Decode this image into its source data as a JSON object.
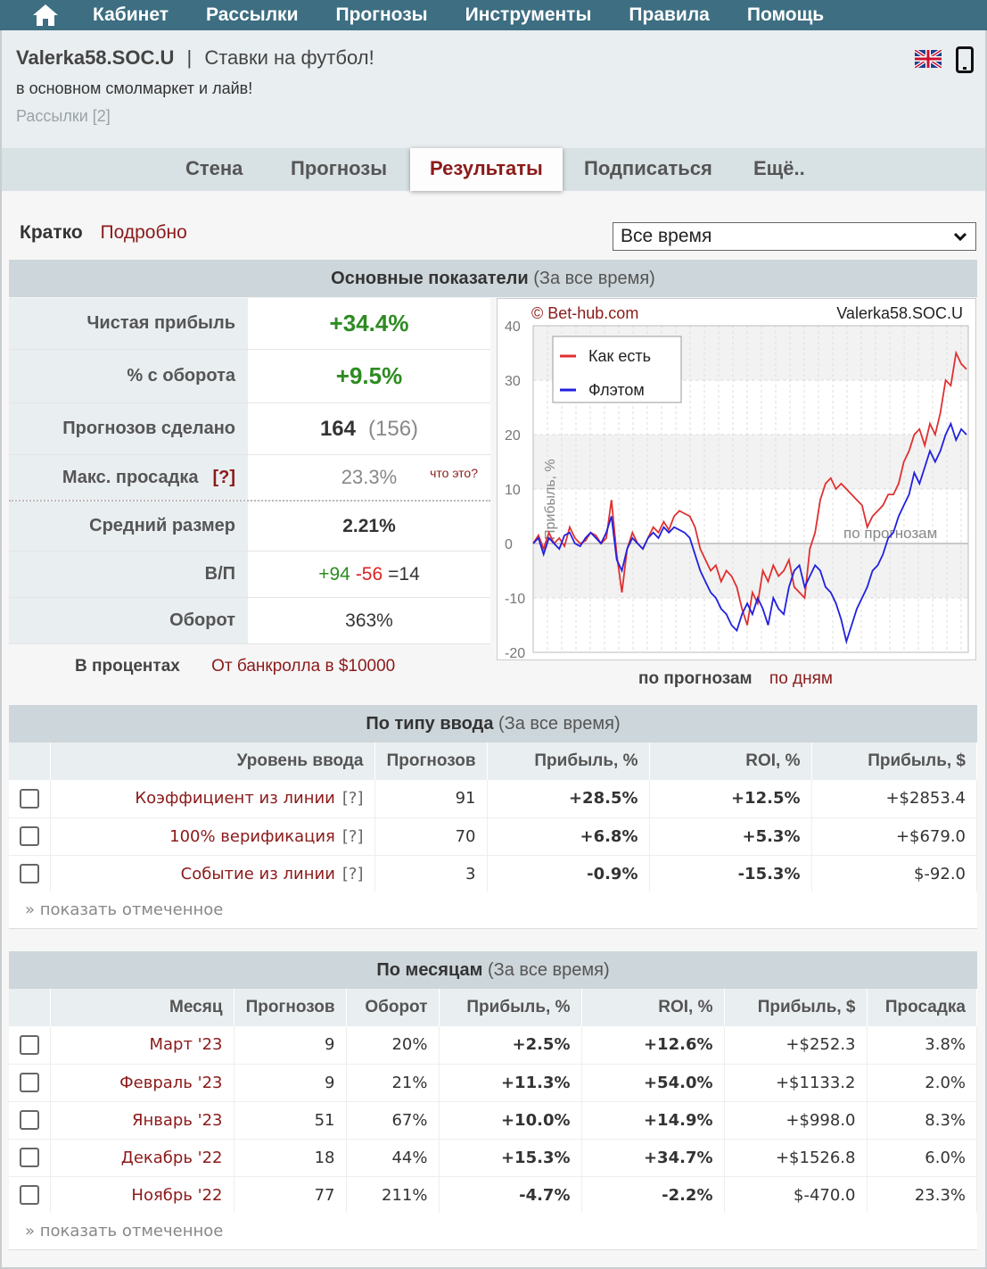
{
  "nav": {
    "items": [
      "Кабинет",
      "Рассылки",
      "Прогнозы",
      "Инструменты",
      "Правила",
      "Помощь"
    ]
  },
  "header": {
    "name": "Valerka58.SOC.U",
    "separator": "|",
    "title": "Ставки на футбол!",
    "subtitle": "в основном смолмаркет и лайв!",
    "mailings": "Рассылки [2]"
  },
  "tabs": [
    "Стена",
    "Прогнозы",
    "Результаты",
    "Подписаться",
    "Ещё.."
  ],
  "mode": {
    "short": "Кратко",
    "detailed": "Подробно",
    "period": "Все время"
  },
  "main_stats": {
    "heading": "Основные показатели",
    "period": "(За все время)",
    "rows": [
      {
        "label": "Чистая прибыль",
        "value": "+34.4%"
      },
      {
        "label": "% с оборота",
        "value": "+9.5%"
      },
      {
        "label": "Прогнозов сделано",
        "value": "164",
        "extra": "(156)"
      },
      {
        "label": "Макс. просадка",
        "hint": "[?]",
        "value": "23.3%",
        "note": "что это?"
      },
      {
        "label": "Средний размер",
        "value": "2.21%"
      },
      {
        "label": "В/П",
        "wins": "+94",
        "losses": "-56",
        "diff": "=14"
      },
      {
        "label": "Оборот",
        "value": "363%"
      }
    ],
    "unit_label": "В процентах",
    "bankroll_link": "От банкролла в $10000"
  },
  "chart_data": {
    "type": "line",
    "title": "© Bet-hub.com",
    "author": "Valerka58.SOC.U",
    "xlabel": "по прогнозам",
    "ylabel": "Прибыль, %",
    "ylim": [
      -20,
      40
    ],
    "yticks": [
      "40",
      "30",
      "20",
      "10",
      "0",
      "-10",
      "-20"
    ],
    "grid": true,
    "legend_position": "top-left",
    "series": [
      {
        "name": "Как есть",
        "color": "#e03030",
        "values": [
          0,
          1.5,
          -1,
          2,
          0,
          1,
          -0.5,
          3,
          1,
          0,
          0.5,
          2,
          1.5,
          0,
          1,
          8,
          -2,
          -9,
          -1,
          2,
          0,
          -1,
          1,
          3,
          2,
          4,
          2.5,
          5,
          6,
          5.5,
          5,
          3,
          -1,
          -3,
          -5,
          -4,
          -7,
          -5,
          -6,
          -8,
          -12,
          -15,
          -9,
          -11,
          -5,
          -7,
          -4,
          -6,
          -5,
          -3,
          -8,
          -9,
          -10,
          -1,
          2,
          8,
          11,
          12,
          10,
          11,
          10,
          9,
          8,
          7,
          3,
          5,
          6,
          7,
          9,
          9,
          11,
          15,
          17,
          20,
          21,
          18,
          22,
          20,
          24,
          30,
          29,
          35,
          33,
          32
        ]
      },
      {
        "name": "Флэтом",
        "color": "#2020e0",
        "values": [
          0,
          1,
          -2,
          1,
          0,
          -1,
          1.5,
          2,
          0,
          -0.5,
          1,
          2,
          1,
          0,
          2,
          5,
          -3,
          -5,
          -1,
          1,
          0,
          -1,
          1,
          2,
          1,
          3,
          2,
          3,
          2.5,
          2,
          1,
          -2,
          -5,
          -7,
          -9,
          -10,
          -12,
          -13,
          -15,
          -16,
          -13,
          -11,
          -13,
          -10,
          -12,
          -15,
          -10,
          -12,
          -13,
          -8,
          -5,
          -4,
          -8,
          -6,
          -4,
          -5,
          -8,
          -9,
          -11,
          -14,
          -18,
          -15,
          -12,
          -10,
          -8,
          -5,
          -4,
          -2,
          1,
          2,
          5,
          7,
          9,
          13,
          11,
          14,
          17,
          15,
          17,
          20,
          22,
          19,
          21,
          20
        ]
      }
    ]
  },
  "chart_modes": {
    "by_bets": "по прогнозам",
    "by_days": "по дням"
  },
  "by_type": {
    "heading": "По типу ввода",
    "period": "(За все время)",
    "columns": [
      "Уровень ввода",
      "Прогнозов",
      "Прибыль, %",
      "ROI, %",
      "Прибыль, $"
    ],
    "rows": [
      {
        "name": "Коэффициент из линии",
        "hint": "[?]",
        "count": "91",
        "profit_pct": "+28.5%",
        "roi": "+12.5%",
        "profit_usd": "+$2853.4",
        "sign": "pos"
      },
      {
        "name": "100% верификация",
        "hint": "[?]",
        "count": "70",
        "profit_pct": "+6.8%",
        "roi": "+5.3%",
        "profit_usd": "+$679.0",
        "sign": "pos"
      },
      {
        "name": "Событие из линии",
        "hint": "[?]",
        "count": "3",
        "profit_pct": "-0.9%",
        "roi": "-15.3%",
        "profit_usd": "$-92.0",
        "sign": "neg"
      }
    ],
    "show_selected": "» показать отмеченное"
  },
  "by_month": {
    "heading": "По месяцам",
    "period": "(За все время)",
    "columns": [
      "Месяц",
      "Прогнозов",
      "Оборот",
      "Прибыль, %",
      "ROI, %",
      "Прибыль, $",
      "Просадка"
    ],
    "rows": [
      {
        "month": "Март '23",
        "count": "9",
        "turnover": "20%",
        "profit_pct": "+2.5%",
        "roi": "+12.6%",
        "profit_usd": "+$252.3",
        "drawdown": "3.8%",
        "sign": "pos"
      },
      {
        "month": "Февраль '23",
        "count": "9",
        "turnover": "21%",
        "profit_pct": "+11.3%",
        "roi": "+54.0%",
        "profit_usd": "+$1133.2",
        "drawdown": "2.0%",
        "sign": "pos"
      },
      {
        "month": "Январь '23",
        "count": "51",
        "turnover": "67%",
        "profit_pct": "+10.0%",
        "roi": "+14.9%",
        "profit_usd": "+$998.0",
        "drawdown": "8.3%",
        "sign": "pos"
      },
      {
        "month": "Декабрь '22",
        "count": "18",
        "turnover": "44%",
        "profit_pct": "+15.3%",
        "roi": "+34.7%",
        "profit_usd": "+$1526.8",
        "drawdown": "6.0%",
        "sign": "pos"
      },
      {
        "month": "Ноябрь '22",
        "count": "77",
        "turnover": "211%",
        "profit_pct": "-4.7%",
        "roi": "-2.2%",
        "profit_usd": "$-470.0",
        "drawdown": "23.3%",
        "sign": "neg"
      }
    ],
    "show_selected": "» показать отмеченное"
  }
}
